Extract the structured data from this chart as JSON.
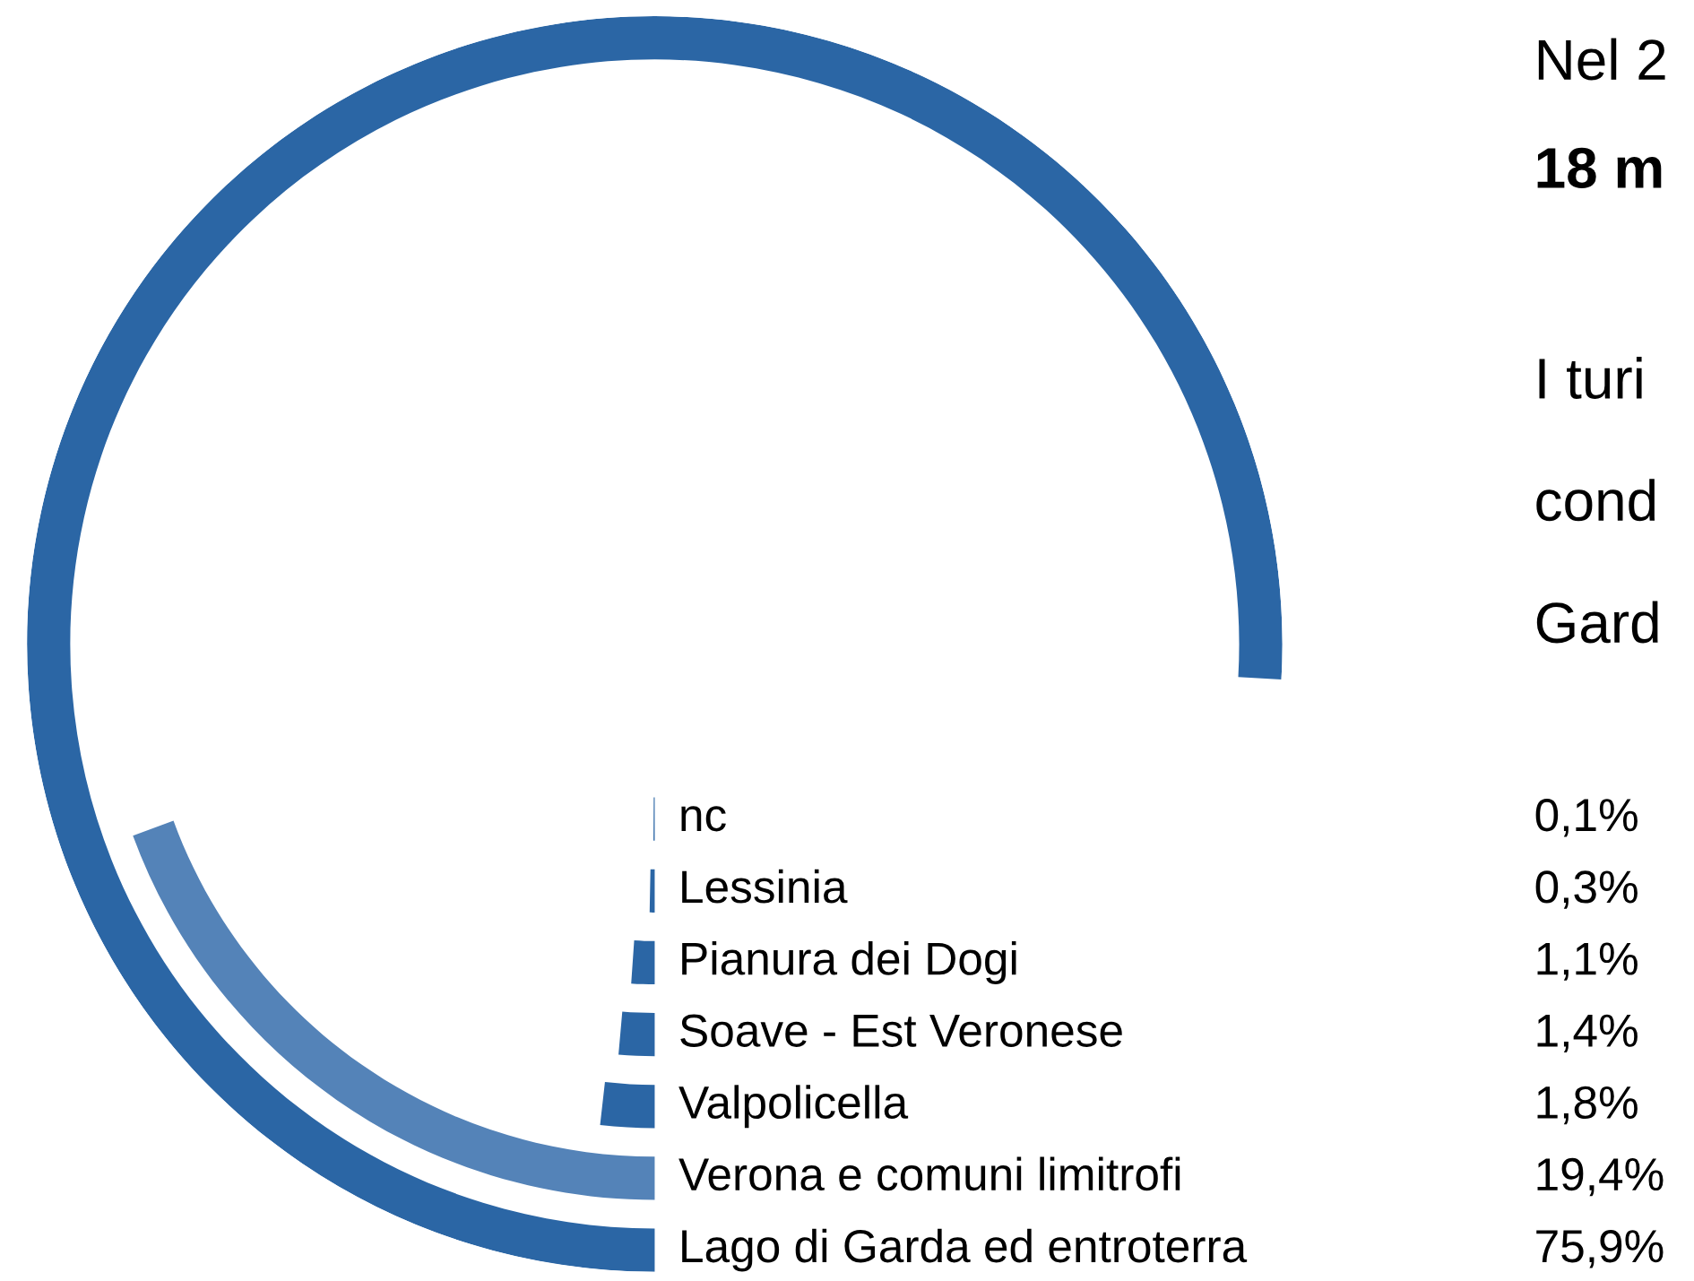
{
  "chart_data": {
    "type": "other",
    "title": "Nel 2",
    "subtitle": "18 m",
    "categories": [
      "nc",
      "Lessinia",
      "Pianura dei Dogi",
      "Soave - Est Veronese",
      "Valpolicella",
      "Verona e comuni limitrofi",
      "Lago di Garda ed entroterra"
    ],
    "values": [
      0.1,
      0.3,
      1.1,
      1.4,
      1.8,
      19.4,
      75.9
    ],
    "value_labels": [
      "0,1%",
      "0,3%",
      "1,1%",
      "1,4%",
      "1,8%",
      "19,4%",
      "75,9%"
    ],
    "colors": [
      "#2b66a5",
      "#2b66a5",
      "#2b66a5",
      "#2b66a5",
      "#2b66a5",
      "#5483b8",
      "#2b66a5"
    ],
    "annotations": [
      "I turi",
      "cond",
      "Gard"
    ]
  }
}
